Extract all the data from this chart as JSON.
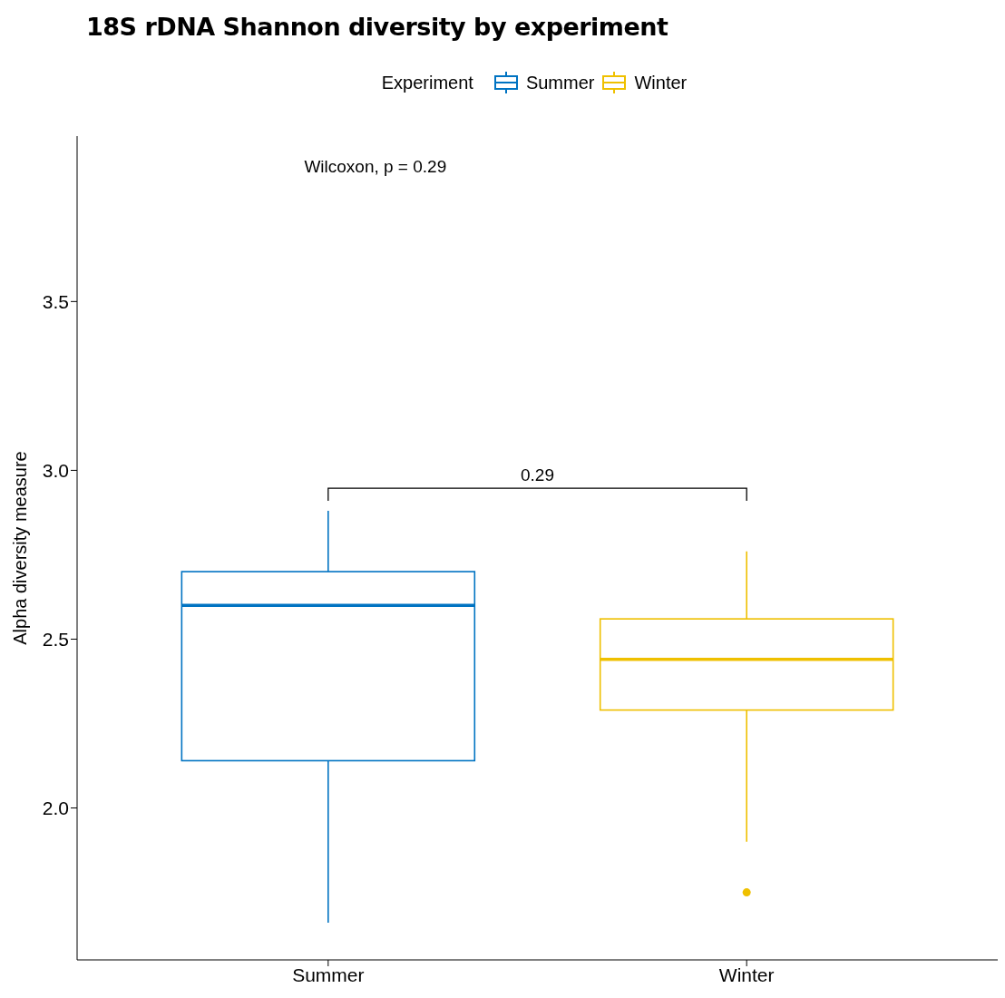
{
  "chart_data": {
    "type": "box",
    "title": "18S rDNA Shannon diversity by experiment",
    "ylabel": "Alpha diversity measure",
    "legend_title": "Experiment",
    "legend": "top",
    "categories": [
      "Summer",
      "Winter"
    ],
    "series": [
      {
        "name": "Summer",
        "color": "#0073c2",
        "boxes": [
          {
            "low": 1.66,
            "q1": 2.14,
            "median": 2.6,
            "q3": 2.7,
            "high": 2.88
          },
          null
        ]
      },
      {
        "name": "Winter",
        "color": "#efc000",
        "boxes": [
          null,
          {
            "low": 1.9,
            "q1": 2.29,
            "median": 2.44,
            "q3": 2.56,
            "high": 2.76,
            "outliers": [
              1.75
            ]
          }
        ]
      }
    ],
    "ylim": [
      1.55,
      3.99
    ],
    "yticks": [
      {
        "value": 2,
        "label": "2.0"
      },
      {
        "value": 2.5,
        "label": "2.5"
      },
      {
        "value": 3,
        "label": "3.0"
      },
      {
        "value": 3.5,
        "label": "3.5"
      }
    ],
    "grid": false,
    "annotations": [
      "Wilcoxon, p = 0.29",
      "0.29"
    ]
  }
}
